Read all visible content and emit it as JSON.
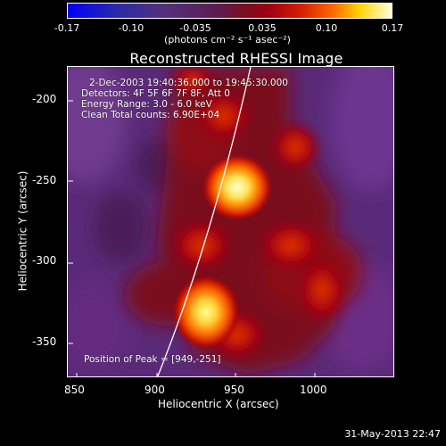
{
  "colorbar": {
    "ticks": [
      "-0.17",
      "-0.10",
      "-0.035",
      "0.035",
      "0.10",
      "0.17"
    ],
    "units": "(photons cm⁻² s⁻¹ asec⁻²)"
  },
  "plot": {
    "title": "Reconstructed RHESSI Image",
    "info_lines": [
      "2-Dec-2003 19:40:36.000 to 19:45:30.000",
      "Detectors: 4F 5F 6F 7F 8F, Att 0",
      "Energy Range: 3.0 - 6.0 keV",
      "Clean     Total counts: 6.90E+04"
    ],
    "peak_label": "Position of Peak = [949,-251]",
    "x_axis_label": "Heliocentric X (arcsec)",
    "y_axis_label": "Heliocentric Y (arcsec)",
    "x_ticks": [
      "850",
      "900",
      "950",
      "1000"
    ],
    "y_ticks": [
      "-200",
      "-250",
      "-300",
      "-350"
    ],
    "colors": {
      "background": "#000000",
      "purple": "#6b2a85",
      "dark_red": "#7a0f1f",
      "orange": "#ff6a00",
      "bright": "#ffffe0"
    }
  },
  "footer": {
    "date": "31-May-2013 22:47"
  }
}
